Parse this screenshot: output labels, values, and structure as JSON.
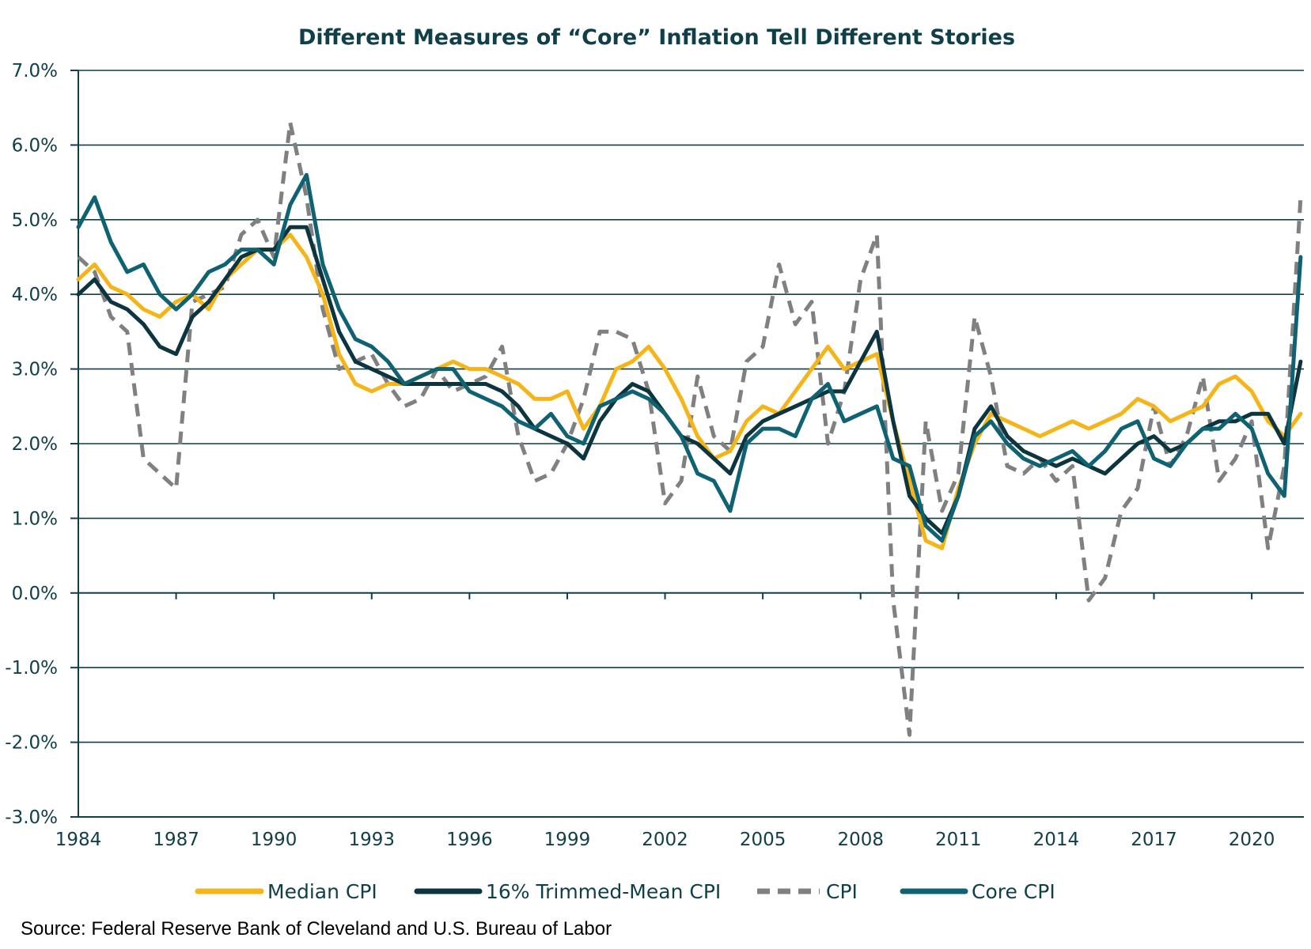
{
  "chart_data": {
    "type": "line",
    "title": "Different Measures of “Core” Inflation Tell Different Stories",
    "xlabel": "",
    "ylabel": "",
    "ylim": [
      -3.0,
      7.0
    ],
    "xlim": [
      1984.0,
      2021.6
    ],
    "y_ticks": [
      "7.0%",
      "6.0%",
      "5.0%",
      "4.0%",
      "3.0%",
      "2.0%",
      "1.0%",
      "0.0%",
      "-1.0%",
      "-2.0%",
      "-3.0%"
    ],
    "x_ticks": [
      "1984",
      "1987",
      "1990",
      "1993",
      "1996",
      "1999",
      "2002",
      "2005",
      "2008",
      "2011",
      "2014",
      "2017",
      "2020"
    ],
    "grid": "horizontal",
    "legend_position": "bottom",
    "source": "Source: Federal Reserve Bank of Cleveland and U.S. Bureau of Labor",
    "series": [
      {
        "name": "Median CPI",
        "color": "#f5b417",
        "dash": "solid",
        "x": [
          1984.0,
          1984.5,
          1985.0,
          1985.5,
          1986.0,
          1986.5,
          1987.0,
          1987.5,
          1988.0,
          1988.5,
          1989.0,
          1989.5,
          1990.0,
          1990.5,
          1991.0,
          1991.5,
          1992.0,
          1992.5,
          1993.0,
          1993.5,
          1994.0,
          1994.5,
          1995.0,
          1995.5,
          1996.0,
          1996.5,
          1997.0,
          1997.5,
          1998.0,
          1998.5,
          1999.0,
          1999.5,
          2000.0,
          2000.5,
          2001.0,
          2001.5,
          2002.0,
          2002.5,
          2003.0,
          2003.5,
          2004.0,
          2004.5,
          2005.0,
          2005.5,
          2006.0,
          2006.5,
          2007.0,
          2007.5,
          2008.0,
          2008.5,
          2009.0,
          2009.5,
          2010.0,
          2010.5,
          2011.0,
          2011.5,
          2012.0,
          2012.5,
          2013.0,
          2013.5,
          2014.0,
          2014.5,
          2015.0,
          2015.5,
          2016.0,
          2016.5,
          2017.0,
          2017.5,
          2018.0,
          2018.5,
          2019.0,
          2019.5,
          2020.0,
          2020.5,
          2021.0,
          2021.5
        ],
        "values": [
          4.2,
          4.4,
          4.1,
          4.0,
          3.8,
          3.7,
          3.9,
          4.0,
          3.8,
          4.2,
          4.4,
          4.6,
          4.6,
          4.8,
          4.5,
          4.0,
          3.2,
          2.8,
          2.7,
          2.8,
          2.8,
          2.9,
          3.0,
          3.1,
          3.0,
          3.0,
          2.9,
          2.8,
          2.6,
          2.6,
          2.7,
          2.2,
          2.5,
          3.0,
          3.1,
          3.3,
          3.0,
          2.6,
          2.1,
          1.8,
          1.9,
          2.3,
          2.5,
          2.4,
          2.7,
          3.0,
          3.3,
          3.0,
          3.1,
          3.2,
          2.3,
          1.5,
          0.7,
          0.6,
          1.4,
          2.0,
          2.4,
          2.3,
          2.2,
          2.1,
          2.2,
          2.3,
          2.2,
          2.3,
          2.4,
          2.6,
          2.5,
          2.3,
          2.4,
          2.5,
          2.8,
          2.9,
          2.7,
          2.3,
          2.1,
          2.4
        ]
      },
      {
        "name": "16% Trimmed-Mean CPI",
        "color": "#0d3540",
        "dash": "solid",
        "x": [
          1984.0,
          1984.5,
          1985.0,
          1985.5,
          1986.0,
          1986.5,
          1987.0,
          1987.5,
          1988.0,
          1988.5,
          1989.0,
          1989.5,
          1990.0,
          1990.5,
          1991.0,
          1991.5,
          1992.0,
          1992.5,
          1993.0,
          1993.5,
          1994.0,
          1994.5,
          1995.0,
          1995.5,
          1996.0,
          1996.5,
          1997.0,
          1997.5,
          1998.0,
          1998.5,
          1999.0,
          1999.5,
          2000.0,
          2000.5,
          2001.0,
          2001.5,
          2002.0,
          2002.5,
          2003.0,
          2003.5,
          2004.0,
          2004.5,
          2005.0,
          2005.5,
          2006.0,
          2006.5,
          2007.0,
          2007.5,
          2008.0,
          2008.5,
          2009.0,
          2009.5,
          2010.0,
          2010.5,
          2011.0,
          2011.5,
          2012.0,
          2012.5,
          2013.0,
          2013.5,
          2014.0,
          2014.5,
          2015.0,
          2015.5,
          2016.0,
          2016.5,
          2017.0,
          2017.5,
          2018.0,
          2018.5,
          2019.0,
          2019.5,
          2020.0,
          2020.5,
          2021.0,
          2021.5
        ],
        "values": [
          4.0,
          4.2,
          3.9,
          3.8,
          3.6,
          3.3,
          3.2,
          3.7,
          3.9,
          4.2,
          4.5,
          4.6,
          4.6,
          4.9,
          4.9,
          4.2,
          3.5,
          3.1,
          3.0,
          2.9,
          2.8,
          2.8,
          2.8,
          2.8,
          2.8,
          2.8,
          2.7,
          2.5,
          2.2,
          2.1,
          2.0,
          1.8,
          2.3,
          2.6,
          2.8,
          2.7,
          2.4,
          2.1,
          2.0,
          1.8,
          1.6,
          2.1,
          2.3,
          2.4,
          2.5,
          2.6,
          2.7,
          2.7,
          3.1,
          3.5,
          2.3,
          1.3,
          1.0,
          0.8,
          1.3,
          2.2,
          2.5,
          2.1,
          1.9,
          1.8,
          1.7,
          1.8,
          1.7,
          1.6,
          1.8,
          2.0,
          2.1,
          1.9,
          2.0,
          2.2,
          2.3,
          2.3,
          2.4,
          2.4,
          2.0,
          3.1
        ]
      },
      {
        "name": "CPI",
        "color": "#808080",
        "dash": "dashed",
        "x": [
          1984.0,
          1984.5,
          1985.0,
          1985.5,
          1986.0,
          1986.5,
          1987.0,
          1987.5,
          1988.0,
          1988.5,
          1989.0,
          1989.5,
          1990.0,
          1990.5,
          1991.0,
          1991.5,
          1992.0,
          1992.5,
          1993.0,
          1993.5,
          1994.0,
          1994.5,
          1995.0,
          1995.5,
          1996.0,
          1996.5,
          1997.0,
          1997.5,
          1998.0,
          1998.5,
          1999.0,
          1999.5,
          2000.0,
          2000.5,
          2001.0,
          2001.5,
          2002.0,
          2002.5,
          2003.0,
          2003.5,
          2004.0,
          2004.5,
          2005.0,
          2005.5,
          2006.0,
          2006.5,
          2007.0,
          2007.5,
          2008.0,
          2008.5,
          2009.0,
          2009.5,
          2010.0,
          2010.5,
          2011.0,
          2011.5,
          2012.0,
          2012.5,
          2013.0,
          2013.5,
          2014.0,
          2014.5,
          2015.0,
          2015.5,
          2016.0,
          2016.5,
          2017.0,
          2017.5,
          2018.0,
          2018.5,
          2019.0,
          2019.5,
          2020.0,
          2020.5,
          2021.0,
          2021.5
        ],
        "values": [
          4.5,
          4.3,
          3.7,
          3.5,
          1.8,
          1.6,
          1.4,
          3.9,
          4.0,
          4.1,
          4.8,
          5.0,
          4.5,
          6.3,
          5.3,
          3.8,
          3.0,
          3.1,
          3.2,
          2.8,
          2.5,
          2.6,
          3.0,
          2.7,
          2.8,
          2.9,
          3.3,
          2.1,
          1.5,
          1.6,
          2.0,
          2.6,
          3.5,
          3.5,
          3.4,
          2.7,
          1.2,
          1.5,
          2.9,
          2.1,
          1.9,
          3.1,
          3.3,
          4.4,
          3.6,
          3.9,
          2.0,
          2.7,
          4.2,
          4.8,
          -0.1,
          -1.9,
          2.3,
          1.1,
          1.6,
          3.7,
          2.9,
          1.7,
          1.6,
          1.8,
          1.5,
          1.7,
          -0.1,
          0.2,
          1.1,
          1.4,
          2.5,
          1.7,
          2.1,
          2.9,
          1.5,
          1.8,
          2.3,
          0.6,
          1.7,
          5.3
        ]
      },
      {
        "name": "Core CPI",
        "color": "#0e6271",
        "dash": "solid",
        "x": [
          1984.0,
          1984.5,
          1985.0,
          1985.5,
          1986.0,
          1986.5,
          1987.0,
          1987.5,
          1988.0,
          1988.5,
          1989.0,
          1989.5,
          1990.0,
          1990.5,
          1991.0,
          1991.5,
          1992.0,
          1992.5,
          1993.0,
          1993.5,
          1994.0,
          1994.5,
          1995.0,
          1995.5,
          1996.0,
          1996.5,
          1997.0,
          1997.5,
          1998.0,
          1998.5,
          1999.0,
          1999.5,
          2000.0,
          2000.5,
          2001.0,
          2001.5,
          2002.0,
          2002.5,
          2003.0,
          2003.5,
          2004.0,
          2004.5,
          2005.0,
          2005.5,
          2006.0,
          2006.5,
          2007.0,
          2007.5,
          2008.0,
          2008.5,
          2009.0,
          2009.5,
          2010.0,
          2010.5,
          2011.0,
          2011.5,
          2012.0,
          2012.5,
          2013.0,
          2013.5,
          2014.0,
          2014.5,
          2015.0,
          2015.5,
          2016.0,
          2016.5,
          2017.0,
          2017.5,
          2018.0,
          2018.5,
          2019.0,
          2019.5,
          2020.0,
          2020.5,
          2021.0,
          2021.5
        ],
        "values": [
          4.9,
          5.3,
          4.7,
          4.3,
          4.4,
          4.0,
          3.8,
          4.0,
          4.3,
          4.4,
          4.6,
          4.6,
          4.4,
          5.2,
          5.6,
          4.4,
          3.8,
          3.4,
          3.3,
          3.1,
          2.8,
          2.9,
          3.0,
          3.0,
          2.7,
          2.6,
          2.5,
          2.3,
          2.2,
          2.4,
          2.1,
          2.0,
          2.5,
          2.6,
          2.7,
          2.6,
          2.4,
          2.1,
          1.6,
          1.5,
          1.1,
          2.0,
          2.2,
          2.2,
          2.1,
          2.6,
          2.8,
          2.3,
          2.4,
          2.5,
          1.8,
          1.7,
          0.9,
          0.7,
          1.3,
          2.1,
          2.3,
          2.0,
          1.8,
          1.7,
          1.8,
          1.9,
          1.7,
          1.9,
          2.2,
          2.3,
          1.8,
          1.7,
          2.0,
          2.2,
          2.2,
          2.4,
          2.2,
          1.6,
          1.3,
          4.5
        ]
      }
    ]
  }
}
